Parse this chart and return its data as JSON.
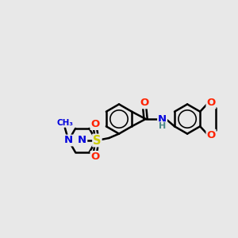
{
  "bg_color": "#e8e8e8",
  "bond_color": "#000000",
  "bond_lw": 1.8,
  "atom_colors": {
    "N": "#0000dd",
    "O": "#ff2200",
    "S": "#cccc00",
    "NH": "#4a8888",
    "H": "#4a8888"
  },
  "font_size": 9.5,
  "ring_r": 0.62
}
